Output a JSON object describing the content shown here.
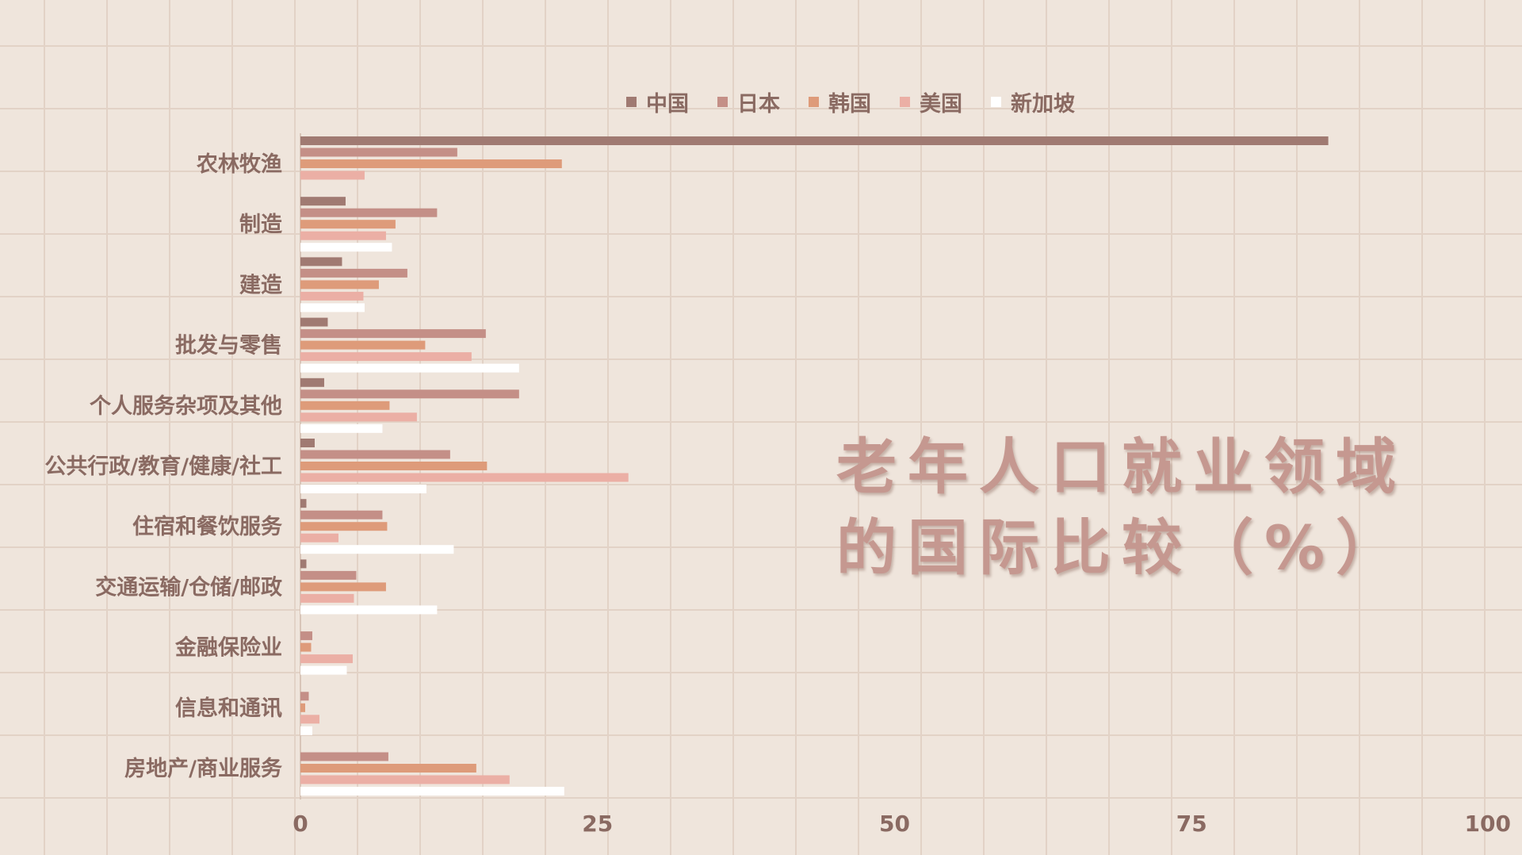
{
  "chart_data": {
    "type": "bar",
    "orientation": "horizontal",
    "title_lines": [
      "老年人口就业领域",
      "的国际比较（%）"
    ],
    "xlim": [
      0,
      100
    ],
    "x_ticks": [
      "0",
      "25",
      "50",
      "75",
      "100"
    ],
    "grid": true,
    "legend_position": "top",
    "categories": [
      "农林牧渔",
      "制造",
      "建造",
      "批发与零售",
      "个人服务杂项及其他",
      "公共行政/教育/健康/社工",
      "住宿和餐饮服务",
      "交通运输/仓储/邮政",
      "金融保险业",
      "信息和通讯",
      "房地产/商业服务"
    ],
    "series": [
      {
        "name": "中国",
        "color": "#a07a72",
        "values": [
          86.5,
          3.8,
          3.5,
          2.3,
          2.0,
          1.2,
          0.5,
          0.5,
          0,
          0,
          0
        ]
      },
      {
        "name": "日本",
        "color": "#c48f87",
        "values": [
          13.2,
          11.5,
          9.0,
          15.6,
          18.4,
          12.6,
          6.9,
          4.7,
          1.0,
          0.7,
          7.4
        ]
      },
      {
        "name": "韩国",
        "color": "#de9b7a",
        "values": [
          22.0,
          8.0,
          6.6,
          10.5,
          7.5,
          15.7,
          7.3,
          7.2,
          0.9,
          0.4,
          14.8
        ]
      },
      {
        "name": "美国",
        "color": "#ebafa5",
        "values": [
          5.4,
          7.2,
          5.3,
          14.4,
          9.8,
          27.6,
          3.2,
          4.5,
          4.4,
          1.6,
          17.6
        ]
      },
      {
        "name": "新加坡",
        "color": "#ffffff",
        "values": [
          0,
          7.7,
          5.4,
          18.4,
          6.9,
          10.6,
          12.9,
          11.5,
          3.9,
          1.0,
          22.2
        ]
      }
    ]
  }
}
